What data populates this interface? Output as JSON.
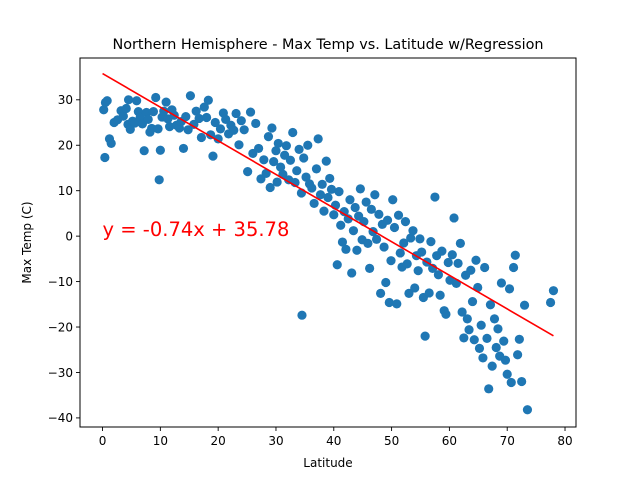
{
  "chart_data": {
    "type": "scatter",
    "title": "Northern Hemisphere - Max Temp vs. Latitude w/Regression",
    "xlabel": "Latitude",
    "ylabel": "Max Temp (C)",
    "xlim": [
      -3.9,
      81.9
    ],
    "ylim": [
      -42,
      39.2
    ],
    "xticks": [
      0,
      10,
      20,
      30,
      40,
      50,
      60,
      70,
      80
    ],
    "yticks": [
      -40,
      -30,
      -20,
      -10,
      0,
      10,
      20,
      30
    ],
    "grid": false,
    "point_color": "#1f77b4",
    "line_color": "#ff0000",
    "regression": {
      "slope": -0.74,
      "intercept": 35.78,
      "x_range": [
        0,
        78
      ],
      "equation_label": "y = -0.74x + 35.78",
      "label_position": [
        0,
        0
      ]
    },
    "points": [
      [
        0.2,
        27.8
      ],
      [
        0.5,
        29.4
      ],
      [
        0.8,
        29.8
      ],
      [
        0.4,
        17.3
      ],
      [
        1.2,
        21.4
      ],
      [
        1.5,
        20.4
      ],
      [
        2.0,
        25.0
      ],
      [
        2.6,
        25.6
      ],
      [
        3.2,
        27.6
      ],
      [
        3.6,
        26.4
      ],
      [
        4.1,
        28.1
      ],
      [
        4.5,
        30.0
      ],
      [
        4.4,
        24.6
      ],
      [
        4.8,
        23.5
      ],
      [
        5.2,
        25.3
      ],
      [
        5.6,
        24.9
      ],
      [
        5.9,
        29.8
      ],
      [
        6.2,
        27.4
      ],
      [
        6.5,
        26.1
      ],
      [
        6.9,
        24.7
      ],
      [
        7.2,
        18.8
      ],
      [
        7.6,
        27.2
      ],
      [
        7.9,
        25.7
      ],
      [
        8.2,
        22.9
      ],
      [
        8.5,
        23.7
      ],
      [
        8.8,
        27.4
      ],
      [
        9.2,
        30.5
      ],
      [
        9.6,
        23.6
      ],
      [
        9.8,
        12.4
      ],
      [
        10.0,
        18.9
      ],
      [
        10.3,
        26.2
      ],
      [
        10.6,
        27.5
      ],
      [
        11.0,
        29.5
      ],
      [
        11.3,
        25.8
      ],
      [
        11.6,
        24.1
      ],
      [
        12.0,
        27.8
      ],
      [
        12.4,
        26.6
      ],
      [
        12.8,
        24.4
      ],
      [
        13.3,
        23.8
      ],
      [
        13.6,
        25.2
      ],
      [
        14.0,
        19.3
      ],
      [
        14.4,
        26.3
      ],
      [
        14.8,
        23.4
      ],
      [
        15.2,
        30.9
      ],
      [
        15.8,
        24.6
      ],
      [
        16.2,
        27.5
      ],
      [
        16.7,
        25.9
      ],
      [
        17.1,
        21.7
      ],
      [
        17.6,
        28.4
      ],
      [
        18.0,
        26.1
      ],
      [
        18.3,
        29.9
      ],
      [
        18.7,
        22.3
      ],
      [
        19.1,
        17.6
      ],
      [
        19.5,
        25.0
      ],
      [
        20.0,
        21.4
      ],
      [
        20.4,
        23.6
      ],
      [
        20.9,
        27.1
      ],
      [
        21.3,
        25.7
      ],
      [
        21.8,
        22.5
      ],
      [
        22.2,
        24.4
      ],
      [
        22.7,
        23.3
      ],
      [
        23.1,
        27.0
      ],
      [
        23.6,
        20.1
      ],
      [
        24.0,
        25.4
      ],
      [
        24.5,
        23.4
      ],
      [
        25.1,
        14.2
      ],
      [
        25.6,
        27.3
      ],
      [
        26.0,
        18.2
      ],
      [
        26.5,
        24.8
      ],
      [
        27.0,
        19.3
      ],
      [
        27.4,
        12.6
      ],
      [
        27.9,
        16.8
      ],
      [
        28.3,
        13.8
      ],
      [
        28.7,
        21.9
      ],
      [
        29.0,
        10.7
      ],
      [
        29.3,
        23.8
      ],
      [
        29.6,
        16.4
      ],
      [
        30.0,
        18.8
      ],
      [
        30.2,
        11.9
      ],
      [
        30.4,
        20.4
      ],
      [
        30.8,
        15.2
      ],
      [
        31.2,
        13.6
      ],
      [
        31.5,
        17.8
      ],
      [
        31.8,
        19.9
      ],
      [
        32.2,
        12.4
      ],
      [
        32.5,
        16.7
      ],
      [
        32.9,
        22.8
      ],
      [
        33.3,
        11.8
      ],
      [
        33.6,
        14.4
      ],
      [
        34.0,
        19.1
      ],
      [
        34.4,
        9.5
      ],
      [
        34.5,
        -17.4
      ],
      [
        34.8,
        17.2
      ],
      [
        35.2,
        13.0
      ],
      [
        35.5,
        20.0
      ],
      [
        35.8,
        11.5
      ],
      [
        36.2,
        10.6
      ],
      [
        36.6,
        7.2
      ],
      [
        37.0,
        14.8
      ],
      [
        37.3,
        21.4
      ],
      [
        37.7,
        9.1
      ],
      [
        38.0,
        11.4
      ],
      [
        38.3,
        5.5
      ],
      [
        38.7,
        16.5
      ],
      [
        39.0,
        8.5
      ],
      [
        39.3,
        12.7
      ],
      [
        39.6,
        10.3
      ],
      [
        40.0,
        4.7
      ],
      [
        40.3,
        6.8
      ],
      [
        40.6,
        -6.3
      ],
      [
        40.9,
        9.8
      ],
      [
        41.2,
        2.4
      ],
      [
        41.5,
        -1.3
      ],
      [
        41.8,
        5.4
      ],
      [
        42.1,
        -2.9
      ],
      [
        42.5,
        3.8
      ],
      [
        42.8,
        8.0
      ],
      [
        43.1,
        -8.1
      ],
      [
        43.4,
        1.2
      ],
      [
        43.7,
        6.3
      ],
      [
        44.0,
        -3.1
      ],
      [
        44.3,
        4.4
      ],
      [
        44.6,
        10.4
      ],
      [
        44.9,
        -0.8
      ],
      [
        45.2,
        3.2
      ],
      [
        45.6,
        7.5
      ],
      [
        45.9,
        -1.6
      ],
      [
        46.2,
        -7.1
      ],
      [
        46.5,
        5.9
      ],
      [
        46.8,
        1.0
      ],
      [
        47.1,
        9.1
      ],
      [
        47.4,
        -0.7
      ],
      [
        47.8,
        4.8
      ],
      [
        48.1,
        -12.6
      ],
      [
        48.4,
        2.6
      ],
      [
        48.7,
        -2.4
      ],
      [
        49.0,
        -10.2
      ],
      [
        49.3,
        3.5
      ],
      [
        49.6,
        -14.6
      ],
      [
        49.9,
        -5.4
      ],
      [
        50.2,
        8.0
      ],
      [
        50.5,
        1.9
      ],
      [
        50.9,
        -14.9
      ],
      [
        51.2,
        4.6
      ],
      [
        51.5,
        -3.7
      ],
      [
        51.8,
        -6.8
      ],
      [
        52.1,
        -1.5
      ],
      [
        52.4,
        3.2
      ],
      [
        52.7,
        -6.1
      ],
      [
        53.0,
        -12.6
      ],
      [
        53.3,
        -0.4
      ],
      [
        53.7,
        1.2
      ],
      [
        54.0,
        -11.4
      ],
      [
        54.3,
        -4.3
      ],
      [
        54.6,
        -7.6
      ],
      [
        54.9,
        -0.6
      ],
      [
        55.2,
        -3.5
      ],
      [
        55.5,
        -13.5
      ],
      [
        55.8,
        -22.0
      ],
      [
        56.1,
        -5.7
      ],
      [
        56.5,
        -12.5
      ],
      [
        56.8,
        -1.2
      ],
      [
        57.1,
        -7.1
      ],
      [
        57.5,
        8.6
      ],
      [
        57.8,
        -4.3
      ],
      [
        58.1,
        -8.5
      ],
      [
        58.4,
        -13.0
      ],
      [
        58.7,
        -3.3
      ],
      [
        59.1,
        -16.4
      ],
      [
        59.4,
        -17.2
      ],
      [
        59.8,
        -5.8
      ],
      [
        60.1,
        -9.7
      ],
      [
        60.5,
        -4.1
      ],
      [
        60.8,
        4.0
      ],
      [
        61.2,
        -10.4
      ],
      [
        61.5,
        -6.0
      ],
      [
        61.9,
        -1.6
      ],
      [
        62.2,
        -16.7
      ],
      [
        62.5,
        -22.4
      ],
      [
        62.8,
        -8.6
      ],
      [
        63.1,
        -18.2
      ],
      [
        63.4,
        -20.6
      ],
      [
        63.7,
        -7.5
      ],
      [
        64.0,
        -14.4
      ],
      [
        64.3,
        -22.8
      ],
      [
        64.6,
        -5.3
      ],
      [
        64.9,
        -11.3
      ],
      [
        65.2,
        -24.7
      ],
      [
        65.5,
        -19.6
      ],
      [
        65.8,
        -26.8
      ],
      [
        66.1,
        -6.9
      ],
      [
        66.5,
        -22.5
      ],
      [
        66.8,
        -33.6
      ],
      [
        67.1,
        -15.1
      ],
      [
        67.4,
        -28.6
      ],
      [
        67.8,
        -18.2
      ],
      [
        68.1,
        -24.5
      ],
      [
        68.4,
        -20.4
      ],
      [
        68.7,
        -26.4
      ],
      [
        69.0,
        -10.3
      ],
      [
        69.4,
        -23.1
      ],
      [
        69.7,
        -27.3
      ],
      [
        70.0,
        -30.4
      ],
      [
        70.4,
        -11.6
      ],
      [
        70.7,
        -32.2
      ],
      [
        71.1,
        -6.9
      ],
      [
        71.4,
        -4.2
      ],
      [
        71.8,
        -26.1
      ],
      [
        72.1,
        -22.7
      ],
      [
        72.5,
        -32.0
      ],
      [
        73.0,
        -15.2
      ],
      [
        73.5,
        -38.2
      ],
      [
        77.5,
        -14.6
      ],
      [
        78.0,
        -12.0
      ]
    ]
  }
}
